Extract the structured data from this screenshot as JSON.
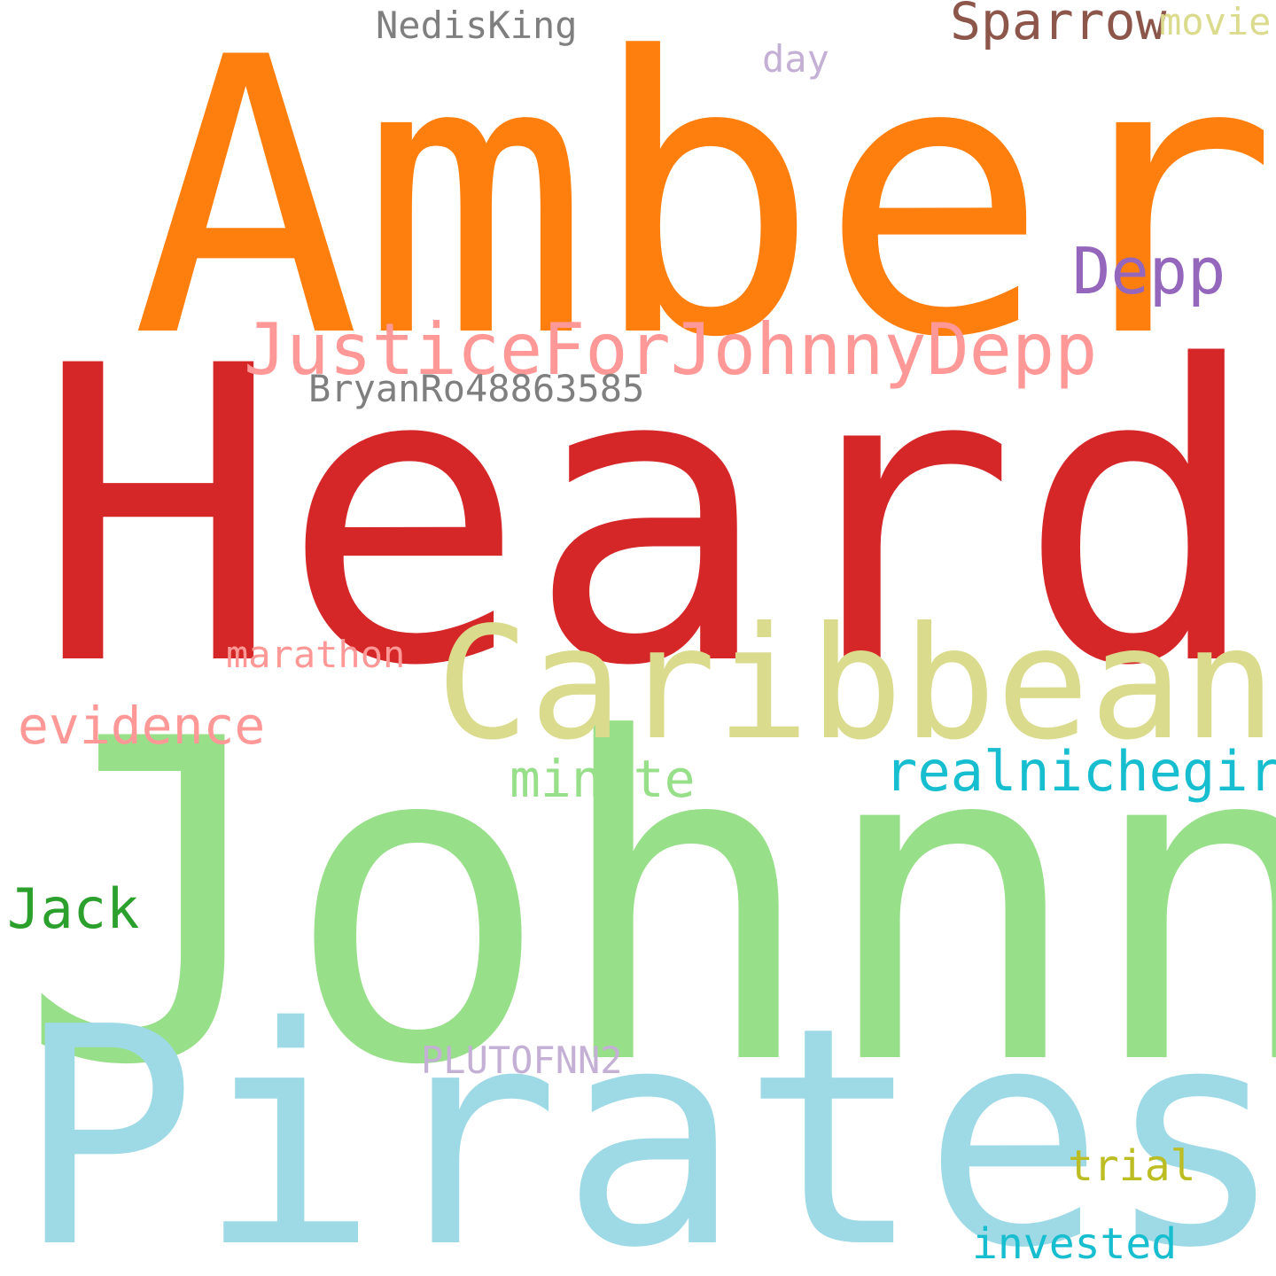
{
  "words": {
    "amber": "Amber",
    "heard": "Heard",
    "johnny": "Johnny",
    "pirates": "Pirates",
    "caribbean": "Caribbean",
    "justice": "JusticeForJohnnyDepp",
    "depp": "Depp",
    "sparrow": "Sparrow",
    "nedisking": "NedisKing",
    "movie": "movie",
    "day": "day",
    "bryan": "BryanRo48863585",
    "marathon": "marathon",
    "evidence": "evidence",
    "minute": "minute",
    "realnichegirl": "realnichegirl",
    "jack": "Jack",
    "pluto": "PLUTOFNN2",
    "trial": "trial",
    "invested": "invested"
  }
}
